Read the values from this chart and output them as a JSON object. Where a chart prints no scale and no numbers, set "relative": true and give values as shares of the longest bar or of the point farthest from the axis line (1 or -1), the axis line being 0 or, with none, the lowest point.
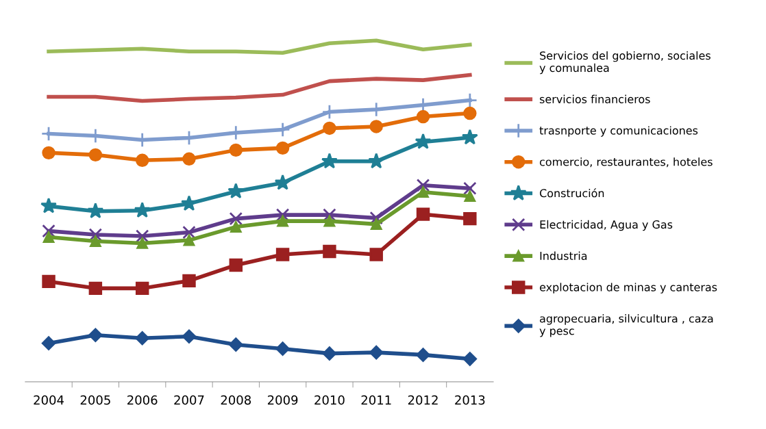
{
  "chart_data": {
    "type": "line",
    "relative": true,
    "grid": false,
    "legend": "right",
    "categories": [
      "2004",
      "2005",
      "2006",
      "2007",
      "2008",
      "2009",
      "2010",
      "2011",
      "2012",
      "2013"
    ],
    "series": [
      {
        "name": "Servicios del gobierno, sociales\ny comunalea",
        "color": "#9bbb59",
        "marker": "none",
        "values": [
          0.968,
          0.972,
          0.976,
          0.968,
          0.968,
          0.964,
          0.992,
          1.0,
          0.974,
          0.988
        ]
      },
      {
        "name": "servicios financieros",
        "color": "#c0504d",
        "marker": "none",
        "values": [
          0.835,
          0.835,
          0.823,
          0.829,
          0.833,
          0.841,
          0.881,
          0.888,
          0.884,
          0.899
        ]
      },
      {
        "name": "trasnporte y comunicaciones",
        "color": "#7f9cce",
        "marker": "cross",
        "values": [
          0.727,
          0.721,
          0.709,
          0.715,
          0.73,
          0.739,
          0.791,
          0.798,
          0.811,
          0.825
        ]
      },
      {
        "name": "comercio, restaurantes, hoteles",
        "color": "#e36c09",
        "marker": "circle",
        "values": [
          0.671,
          0.665,
          0.649,
          0.653,
          0.679,
          0.685,
          0.743,
          0.748,
          0.777,
          0.787
        ]
      },
      {
        "name": "Construción",
        "color": "#1f7f95",
        "marker": "star",
        "values": [
          0.515,
          0.5,
          0.502,
          0.522,
          0.558,
          0.583,
          0.646,
          0.646,
          0.703,
          0.716
        ]
      },
      {
        "name": "Electricidad, Agua y Gas",
        "color": "#5f3c8c",
        "marker": "x",
        "values": [
          0.442,
          0.431,
          0.427,
          0.438,
          0.478,
          0.489,
          0.489,
          0.48,
          0.576,
          0.567
        ]
      },
      {
        "name": "Industria",
        "color": "#6a9a2c",
        "marker": "triangle",
        "values": [
          0.424,
          0.412,
          0.406,
          0.415,
          0.454,
          0.471,
          0.471,
          0.462,
          0.556,
          0.544
        ]
      },
      {
        "name": "explotacion de minas y canteras",
        "color": "#9b2020",
        "marker": "square",
        "values": [
          0.294,
          0.274,
          0.274,
          0.296,
          0.342,
          0.373,
          0.382,
          0.373,
          0.491,
          0.478
        ]
      },
      {
        "name": "agropecuaria, silvicultura , caza\ny pesc",
        "color": "#1f4e8c",
        "marker": "diamond",
        "values": [
          0.113,
          0.137,
          0.128,
          0.133,
          0.109,
          0.097,
          0.083,
          0.086,
          0.079,
          0.067
        ]
      }
    ]
  }
}
